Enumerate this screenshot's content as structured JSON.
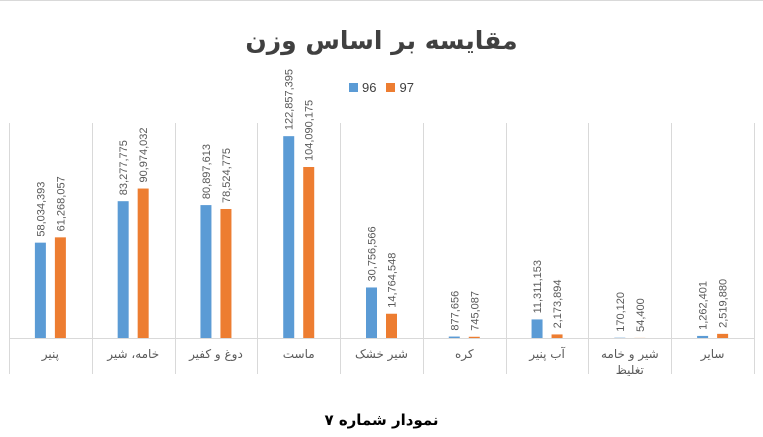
{
  "caption": "نمودار شماره ۷",
  "colors": {
    "s96": "#5b9bd5",
    "s97": "#ed7d31",
    "grid": "#d9d9d9",
    "label": "#595959"
  },
  "chart_data": {
    "type": "bar",
    "title": "مقایسه بر اساس وزن",
    "categories": [
      "پنیر",
      "خامه، شیر",
      "دوغ و کفیر",
      "ماست",
      "شیر خشک",
      "کره",
      "آب پنیر",
      "شیر و خامه تغلیظ",
      "سایر"
    ],
    "series": [
      {
        "name": "96",
        "values": [
          58034393,
          83277775,
          80897613,
          122857395,
          30756566,
          877656,
          11311153,
          170120,
          1262401
        ],
        "labels": [
          "58,034,393",
          "83,277,775",
          "80,897,613",
          "122,857,395",
          "30,756,566",
          "877,656",
          "11,311,153",
          "170,120",
          "1,262,401"
        ]
      },
      {
        "name": "97",
        "values": [
          61268057,
          90974032,
          78524775,
          104090175,
          14764548,
          745087,
          2173894,
          54400,
          2519880
        ],
        "labels": [
          "61,268,057",
          "90,974,032",
          "78,524,775",
          "104,090,175",
          "14,764,548",
          "745,087",
          "2,173,894",
          "54,400",
          "2,519,880"
        ]
      }
    ],
    "ylim": [
      0,
      140000000
    ],
    "legend": "top-center",
    "grid": "vertical category separators"
  }
}
